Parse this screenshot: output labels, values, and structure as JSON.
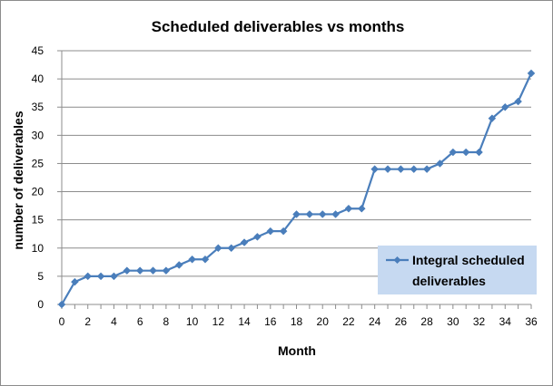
{
  "chart_data": {
    "type": "line",
    "title": "Scheduled deliverables vs months",
    "xlabel": "Month",
    "ylabel": "number of deliverables",
    "xlim": [
      0,
      36
    ],
    "ylim": [
      0,
      45
    ],
    "x_ticks": [
      0,
      2,
      4,
      6,
      8,
      10,
      12,
      14,
      16,
      18,
      20,
      22,
      24,
      26,
      28,
      30,
      32,
      34,
      36
    ],
    "y_ticks": [
      0,
      5,
      10,
      15,
      20,
      25,
      30,
      35,
      40,
      45
    ],
    "grid": "horizontal",
    "legend_position": "bottom-right",
    "series": [
      {
        "name": "Integral scheduled deliverables",
        "color": "#4a7ebb",
        "marker": "diamond",
        "x": [
          0,
          1,
          2,
          3,
          4,
          5,
          6,
          7,
          8,
          9,
          10,
          11,
          12,
          13,
          14,
          15,
          16,
          17,
          18,
          19,
          20,
          21,
          22,
          23,
          24,
          25,
          26,
          27,
          28,
          29,
          30,
          31,
          32,
          33,
          34,
          35,
          36
        ],
        "y": [
          0,
          4,
          5,
          5,
          5,
          6,
          6,
          6,
          6,
          7,
          8,
          8,
          10,
          10,
          11,
          12,
          13,
          13,
          16,
          16,
          16,
          16,
          17,
          17,
          24,
          24,
          24,
          24,
          24,
          25,
          27,
          27,
          27,
          33,
          35,
          36,
          41
        ]
      }
    ],
    "legend_text_lines": [
      "Integral scheduled",
      "deliverables"
    ]
  },
  "colors": {
    "series": "#4a7ebb",
    "grid": "#8c8c8c",
    "legend_bg": "#c6d9f1"
  }
}
